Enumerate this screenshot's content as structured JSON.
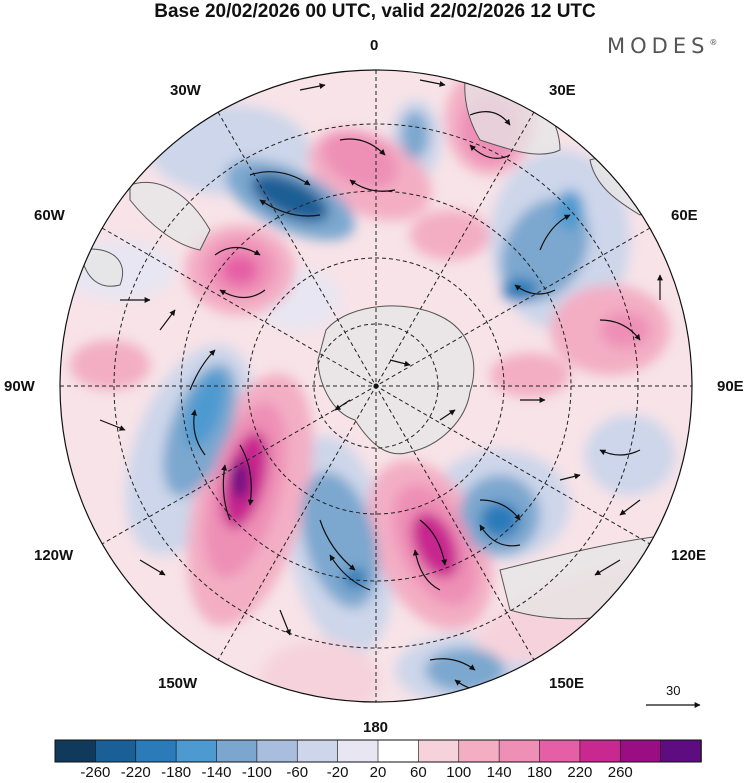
{
  "title": "Base 20/02/2026 00 UTC, valid 22/02/2026 12 UTC",
  "brand": {
    "text": "MODES",
    "mark": "®"
  },
  "map": {
    "projection": "south-polar-stereographic",
    "longitude_labels": {
      "top": "0",
      "top_right": "30E",
      "right_upper": "60E",
      "right": "90E",
      "right_lower": "120E",
      "bottom_right": "150E",
      "bottom": "180",
      "bottom_left": "150W",
      "left_lower": "120W",
      "left": "90W",
      "left_upper": "60W",
      "top_left": "30W"
    },
    "vector_scale_label": "30",
    "colors": {
      "strong_negative": "#1a5f95",
      "negative": "#7ba7cf",
      "weak_negative": "#cdd6ea",
      "weak_positive": "#f6d3dc",
      "positive": "#ee8fb6",
      "strong_positive": "#c8288f",
      "land": "#e6e6e6"
    }
  },
  "colorbar": {
    "bins": [
      {
        "color": "#0f3a5c"
      },
      {
        "color": "#1a5f95"
      },
      {
        "color": "#2b7bb9"
      },
      {
        "color": "#4d9ad0"
      },
      {
        "color": "#7ba7cf"
      },
      {
        "color": "#a9bedf"
      },
      {
        "color": "#cdd6ea"
      },
      {
        "color": "#e8e6f2"
      },
      {
        "color": "#ffffff"
      },
      {
        "color": "#f6d3dc"
      },
      {
        "color": "#f3aec4"
      },
      {
        "color": "#ee8fb6"
      },
      {
        "color": "#e55ea6"
      },
      {
        "color": "#c8288f"
      },
      {
        "color": "#9a0d83"
      },
      {
        "color": "#5d0d80"
      }
    ],
    "tick_labels": [
      "-260",
      "-220",
      "-180",
      "-140",
      "-100",
      "-60",
      "-20",
      "20",
      "60",
      "100",
      "140",
      "180",
      "220",
      "260"
    ]
  }
}
